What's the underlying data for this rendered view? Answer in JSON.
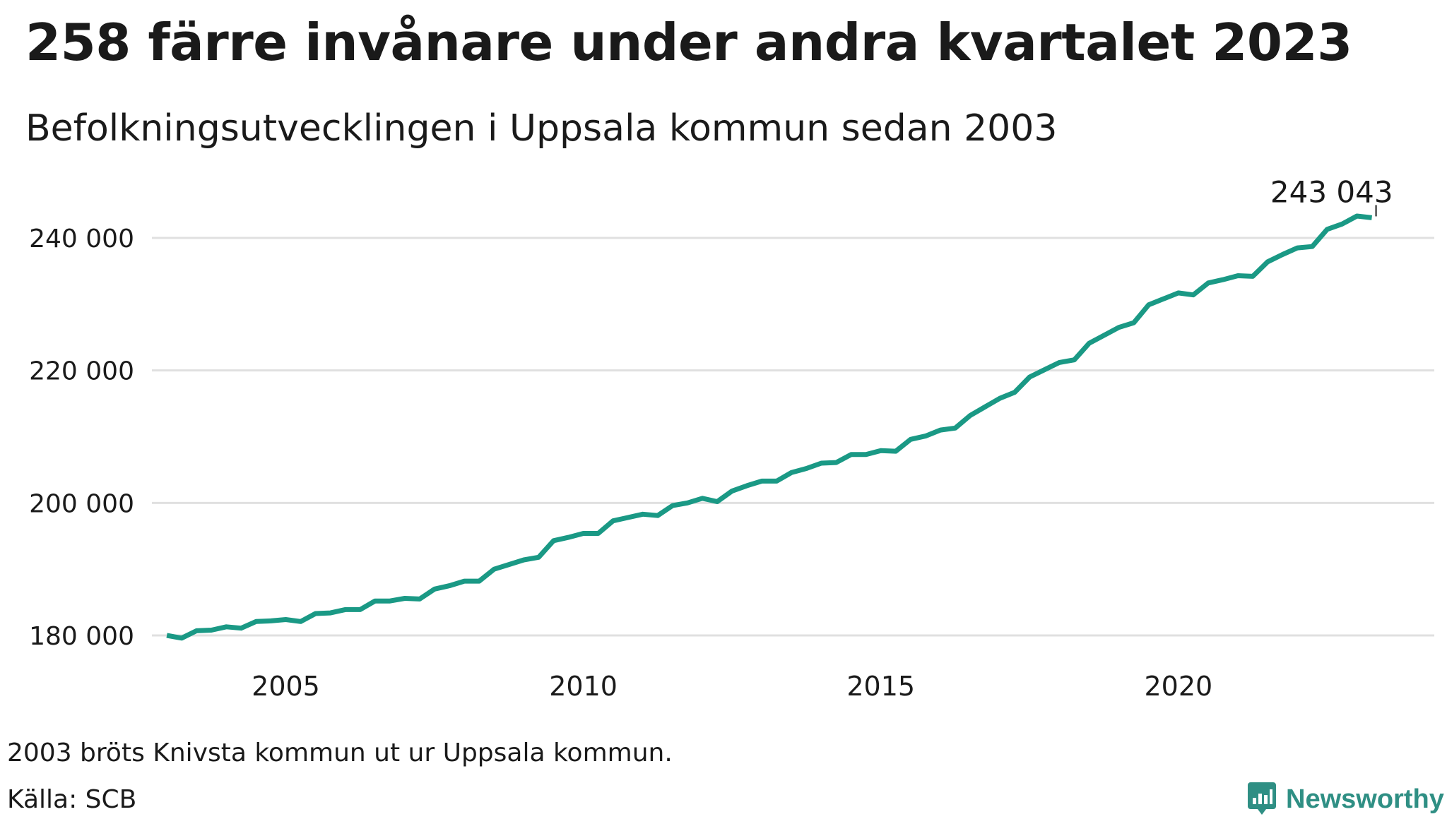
{
  "title": "258 färre invånare under andra kvartalet 2023",
  "subtitle": "Befolkningsutvecklingen i Uppsala kommun sedan 2003",
  "note": "2003 bröts Knivsta kommun ut ur Uppsala kommun.",
  "source": "Källa: SCB",
  "brand": {
    "name": "Newsworthy",
    "icon": "newsworthy-logo-icon",
    "color": "#2f8f84"
  },
  "colors": {
    "line": "#1a9985",
    "grid": "#e0e0e0",
    "text": "#1a1a1a"
  },
  "chart_data": {
    "type": "line",
    "xlabel": "",
    "ylabel": "",
    "grid": true,
    "xlim": [
      2002.75,
      2024.3
    ],
    "ylim": [
      180000,
      240000
    ],
    "x_ticks": [
      2005,
      2010,
      2015,
      2020
    ],
    "x_tick_labels": [
      "2005",
      "2010",
      "2015",
      "2020"
    ],
    "y_ticks": [
      180000,
      200000,
      220000,
      240000
    ],
    "y_tick_labels": [
      "180 000",
      "200 000",
      "220 000",
      "240 000"
    ],
    "annotation": {
      "text": "243 043",
      "x": 2023.25,
      "y": 243043
    },
    "series": [
      {
        "x": [
          2003.0,
          2003.25,
          2003.5,
          2003.75,
          2004.0,
          2004.25,
          2004.5,
          2004.75,
          2005.0,
          2005.25,
          2005.5,
          2005.75,
          2006.0,
          2006.25,
          2006.5,
          2006.75,
          2007.0,
          2007.25,
          2007.5,
          2007.75,
          2008.0,
          2008.25,
          2008.5,
          2008.75,
          2009.0,
          2009.25,
          2009.5,
          2009.75,
          2010.0,
          2010.25,
          2010.5,
          2010.75,
          2011.0,
          2011.25,
          2011.5,
          2011.75,
          2012.0,
          2012.25,
          2012.5,
          2012.75,
          2013.0,
          2013.25,
          2013.5,
          2013.75,
          2014.0,
          2014.25,
          2014.5,
          2014.75,
          2015.0,
          2015.25,
          2015.5,
          2015.75,
          2016.0,
          2016.25,
          2016.5,
          2016.75,
          2017.0,
          2017.25,
          2017.5,
          2017.75,
          2018.0,
          2018.25,
          2018.5,
          2018.75,
          2019.0,
          2019.25,
          2019.5,
          2019.75,
          2020.0,
          2020.25,
          2020.5,
          2020.75,
          2021.0,
          2021.25,
          2021.5,
          2021.75,
          2022.0,
          2022.25,
          2022.5,
          2022.75,
          2023.0,
          2023.25
        ],
        "values": [
          180000,
          179600,
          180700,
          180800,
          181300,
          181100,
          182100,
          182200,
          182400,
          182100,
          183300,
          183400,
          183900,
          183900,
          185200,
          185200,
          185600,
          185500,
          187000,
          187500,
          188200,
          188200,
          190000,
          190700,
          191400,
          191800,
          194300,
          194800,
          195400,
          195400,
          197300,
          197800,
          198300,
          198100,
          199600,
          200000,
          200700,
          200200,
          201800,
          202600,
          203300,
          203300,
          204600,
          205200,
          206000,
          206100,
          207300,
          207300,
          207900,
          207800,
          209600,
          210100,
          211000,
          211300,
          213200,
          214500,
          215800,
          216700,
          219000,
          220100,
          221200,
          221600,
          224100,
          225300,
          226500,
          227200,
          229900,
          230800,
          231700,
          231400,
          233200,
          233700,
          234300,
          234200,
          236400,
          237500,
          238500,
          238700,
          241300,
          242100,
          243301,
          243043
        ]
      }
    ]
  }
}
